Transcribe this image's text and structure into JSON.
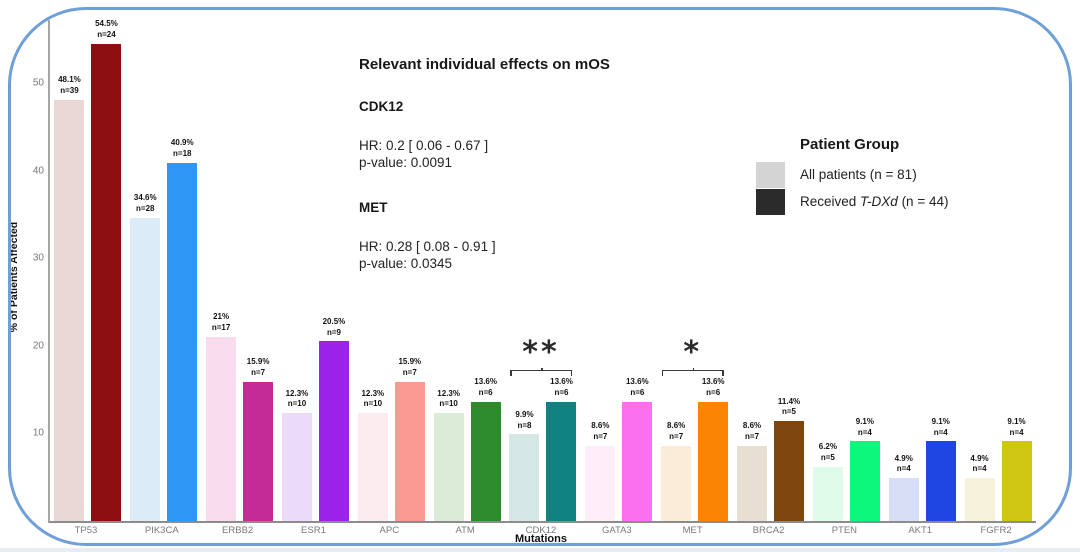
{
  "frame": {
    "border_color": "#6f9fd8"
  },
  "chart_data": {
    "type": "bar",
    "title": "",
    "xlabel": "Mutations",
    "ylabel": "% of Patients Affected",
    "ylim": [
      0,
      57.2
    ],
    "yticks": [
      10,
      20,
      30,
      40,
      50
    ],
    "grid": false,
    "legend_position": "right",
    "categories": [
      "TP53",
      "PIK3CA",
      "ERBB2",
      "ESR1",
      "APC",
      "ATM",
      "CDK12",
      "GATA3",
      "MET",
      "BRCA2",
      "PTEN",
      "AKT1",
      "FGFR2"
    ],
    "series": [
      {
        "name": "All patients (n = 81)",
        "values": [
          48.1,
          34.6,
          21,
          12.3,
          12.3,
          12.3,
          9.9,
          8.6,
          8.6,
          8.6,
          6.2,
          4.9,
          4.9
        ],
        "counts": [
          39,
          28,
          17,
          10,
          10,
          10,
          8,
          7,
          7,
          7,
          5,
          4,
          4
        ],
        "colors": [
          "#e8d7d5",
          "#dcebf8",
          "#f8dcee",
          "#ecdbf8",
          "#fcebee",
          "#dcead8",
          "#d4e7e4",
          "#fdeef9",
          "#fbecd7",
          "#e7dfd2",
          "#ddfbe8",
          "#d8def6",
          "#f5f2d9"
        ]
      },
      {
        "name": "Received T-DXd (n = 44)",
        "values": [
          54.5,
          40.9,
          15.9,
          20.5,
          15.9,
          13.6,
          13.6,
          13.6,
          13.6,
          11.4,
          9.1,
          9.1,
          9.1
        ],
        "counts": [
          24,
          18,
          7,
          9,
          7,
          6,
          6,
          6,
          6,
          5,
          4,
          4,
          4
        ],
        "colors": [
          "#8c0f12",
          "#2e97f5",
          "#c42b95",
          "#9b22e8",
          "#fa9a93",
          "#2e8b2d",
          "#0f8181",
          "#fb70ef",
          "#fb8405",
          "#7d460f",
          "#0bf87c",
          "#1e46e3",
          "#cfc513"
        ]
      }
    ],
    "significance": [
      {
        "category": "CDK12",
        "marker": "**"
      },
      {
        "category": "MET",
        "marker": "*"
      }
    ]
  },
  "annotation_panel": {
    "title": "Relevant individual effects on mOS",
    "entries": [
      {
        "gene": "CDK12",
        "hr": "HR: 0.2 [ 0.06 - 0.67 ]",
        "pvalue": "p-value: 0.0091"
      },
      {
        "gene": "MET",
        "hr": "HR: 0.28 [ 0.08 - 0.91 ]",
        "pvalue": "p-value: 0.0345"
      }
    ]
  },
  "legend": {
    "title": "Patient Group",
    "items": [
      {
        "swatch": "#d4d4d4",
        "text": "All patients (n = 81)",
        "prefix": "",
        "italic": "",
        "suffix": ""
      },
      {
        "swatch": "#2b2b2b",
        "text": "",
        "prefix": "Received ",
        "italic": "T-DXd",
        "suffix": " (n = 44)"
      }
    ]
  }
}
